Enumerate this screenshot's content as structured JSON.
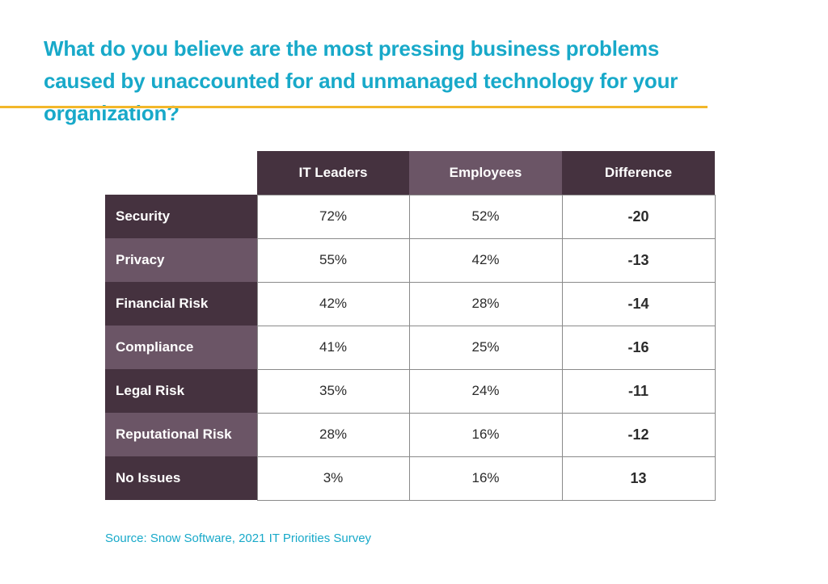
{
  "title": "What do you believe are the most pressing business problems caused by unaccounted for and unmanaged technology for your organization?",
  "source": "Source: Snow Software, 2021 IT Priorities Survey",
  "colors": {
    "title": "#18a9c9",
    "rule": "#f2b72a",
    "header_dark": "#45323f",
    "header_mid": "#6b5566",
    "row_dark": "#45323f",
    "row_light": "#6b5566"
  },
  "chart_data": {
    "type": "table",
    "title": "What do you believe are the most pressing business problems caused by unaccounted for and unmanaged technology for your organization?",
    "columns": [
      "IT Leaders",
      "Employees",
      "Difference"
    ],
    "rows": [
      {
        "label": "Security",
        "it_leaders": "72%",
        "employees": "52%",
        "difference": "-20"
      },
      {
        "label": "Privacy",
        "it_leaders": "55%",
        "employees": "42%",
        "difference": "-13"
      },
      {
        "label": "Financial Risk",
        "it_leaders": "42%",
        "employees": "28%",
        "difference": "-14"
      },
      {
        "label": "Compliance",
        "it_leaders": "41%",
        "employees": "25%",
        "difference": "-16"
      },
      {
        "label": "Legal Risk",
        "it_leaders": "35%",
        "employees": "24%",
        "difference": "-11"
      },
      {
        "label": "Reputational Risk",
        "it_leaders": "28%",
        "employees": "16%",
        "difference": "-12"
      },
      {
        "label": "No Issues",
        "it_leaders": "3%",
        "employees": "16%",
        "difference": "13"
      }
    ]
  }
}
